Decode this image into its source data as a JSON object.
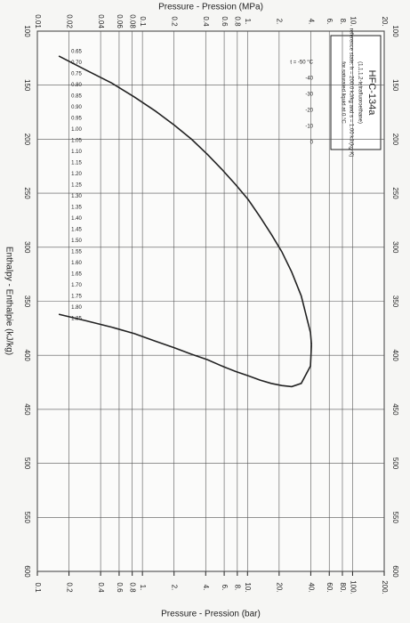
{
  "chart_data": {
    "type": "ph-diagram",
    "title": "HFC-134a",
    "subtitle": "(1,1,1,2-tetrafluoroethane)",
    "notes": [
      "reference state: h = 200.0 kJ/kg and s = 1.00 kJ/(kg·K)",
      "for saturated liquid at 0 °C"
    ],
    "x_label_top": "Pressure - Pression (MPa)",
    "x_label_bottom": "Pressure - Pression (bar)",
    "y_label": "Enthalpy - Enthalpie (kJ/kg)",
    "log_x": true,
    "grid": true,
    "xlim": [
      0.01,
      20
    ],
    "xticks": [
      0.01,
      0.02,
      0.04,
      0.06,
      0.08,
      0.1,
      0.2,
      0.4,
      0.6,
      0.8,
      {
        "value": 1,
        "label": "1."
      },
      {
        "value": 2,
        "label": "2."
      },
      {
        "value": 4,
        "label": "4."
      },
      {
        "value": 6,
        "label": "6."
      },
      {
        "value": 8,
        "label": "8."
      },
      {
        "value": 10,
        "label": "10."
      },
      {
        "value": 20,
        "label": "20."
      }
    ],
    "x2lim": [
      0.1,
      200
    ],
    "x2ticks": [
      0.1,
      0.2,
      0.4,
      0.6,
      0.8,
      {
        "value": 1,
        "label": "1."
      },
      {
        "value": 2,
        "label": "2."
      },
      {
        "value": 4,
        "label": "4."
      },
      {
        "value": 6,
        "label": "6."
      },
      {
        "value": 8,
        "label": "8."
      },
      {
        "value": 10,
        "label": "10."
      },
      {
        "value": 20,
        "label": "20."
      },
      {
        "value": 40,
        "label": "40."
      },
      {
        "value": 60,
        "label": "60."
      },
      {
        "value": 80,
        "label": "80."
      },
      {
        "value": 100,
        "label": "100."
      },
      {
        "value": 200,
        "label": "200."
      }
    ],
    "ylim": [
      100,
      600
    ],
    "yticks": [
      100,
      150,
      200,
      250,
      300,
      350,
      400,
      450,
      500,
      550,
      600
    ],
    "series": [
      {
        "color": "#222",
        "x": [
          0.016,
          0.029,
          0.051,
          0.084,
          0.133,
          0.201,
          0.293,
          0.415,
          0.572,
          0.77,
          1.017,
          1.318,
          1.682,
          2.117,
          2.633,
          3.244,
          3.972,
          4.059
        ],
        "values": [
          123,
          136,
          148,
          161,
          174,
          187,
          200,
          214,
          228,
          242,
          256,
          272,
          288,
          304,
          323,
          345,
          379,
          390
        ]
      },
      {
        "color": "#222",
        "x": [
          0.016,
          0.029,
          0.051,
          0.084,
          0.133,
          0.201,
          0.293,
          0.415,
          0.572,
          0.77,
          1.017,
          1.318,
          1.682,
          2.117,
          2.633,
          3.244,
          3.972,
          4.059
        ],
        "values": [
          362,
          368,
          374,
          380,
          387,
          393,
          399,
          404,
          410,
          415,
          419,
          423,
          426,
          428,
          429,
          426,
          410,
          390
        ]
      }
    ],
    "isotherm_labels": [
      "t = -50 °C",
      "-40",
      "-30",
      "-20",
      "-10",
      "0"
    ],
    "entropy_labels": [
      "0.65",
      "0.70",
      "0.75",
      "0.80",
      "0.85",
      "0.90",
      "0.95",
      "1.00",
      "1.05",
      "1.10",
      "1.15",
      "1.20",
      "1.25",
      "1.30",
      "1.35",
      "1.40",
      "1.45",
      "1.50",
      "1.55",
      "1.60",
      "1.65",
      "1.70",
      "1.75",
      "1.80",
      "1.85"
    ]
  }
}
